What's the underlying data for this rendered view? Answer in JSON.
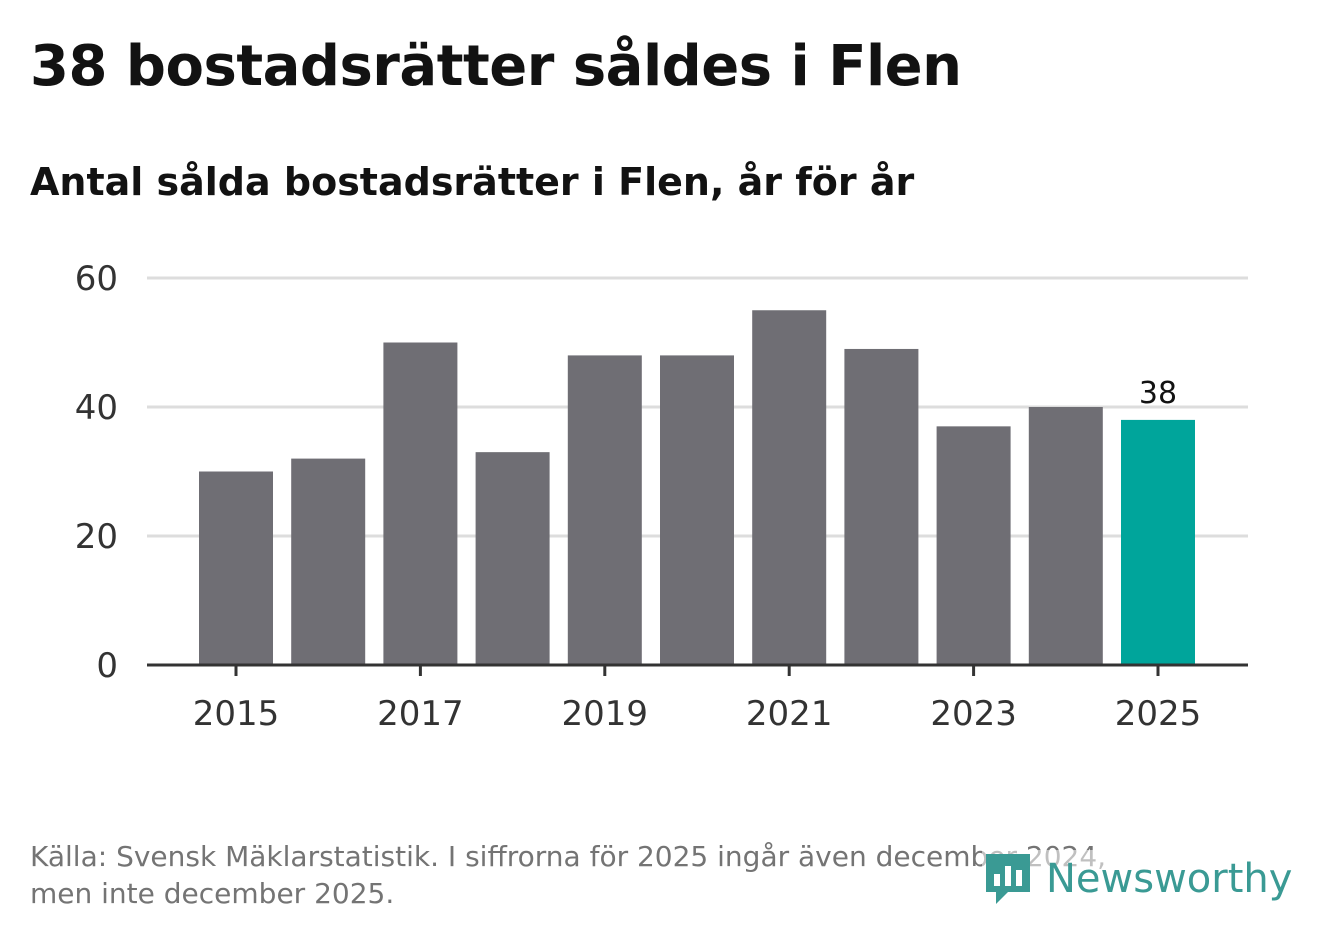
{
  "title": "38 bostadsrätter såldes i Flen",
  "subtitle": "Antal sålda bostadsrätter i Flen, år för år",
  "footer": {
    "line1": "Källa: Svensk Mäklarstatistik. I siffrorna för 2025 ingår även december 2024,",
    "line2": "men inte december 2025."
  },
  "brand": {
    "name": "Newsworthy",
    "color": "#3a9a94"
  },
  "colors": {
    "bar": "#6f6e74",
    "highlight": "#00a59b",
    "grid": "#dddddd",
    "axis": "#333333",
    "text": "#333333"
  },
  "chart_data": {
    "type": "bar",
    "title": "38 bostadsrätter såldes i Flen",
    "subtitle": "Antal sålda bostadsrätter i Flen, år för år",
    "categories": [
      "2015",
      "2016",
      "2017",
      "2018",
      "2019",
      "2020",
      "2021",
      "2022",
      "2023",
      "2024",
      "2025"
    ],
    "values": [
      30,
      32,
      50,
      33,
      48,
      48,
      55,
      49,
      37,
      40,
      38
    ],
    "highlight_index": 10,
    "data_labels": [
      {
        "index": 10,
        "text": "38"
      }
    ],
    "x_tick_labels": [
      "2015",
      "2017",
      "2019",
      "2021",
      "2023",
      "2025"
    ],
    "y_ticks": [
      0,
      20,
      40,
      60
    ],
    "ylim": [
      0,
      60
    ],
    "xlabel": "",
    "ylabel": "",
    "grid": true
  }
}
